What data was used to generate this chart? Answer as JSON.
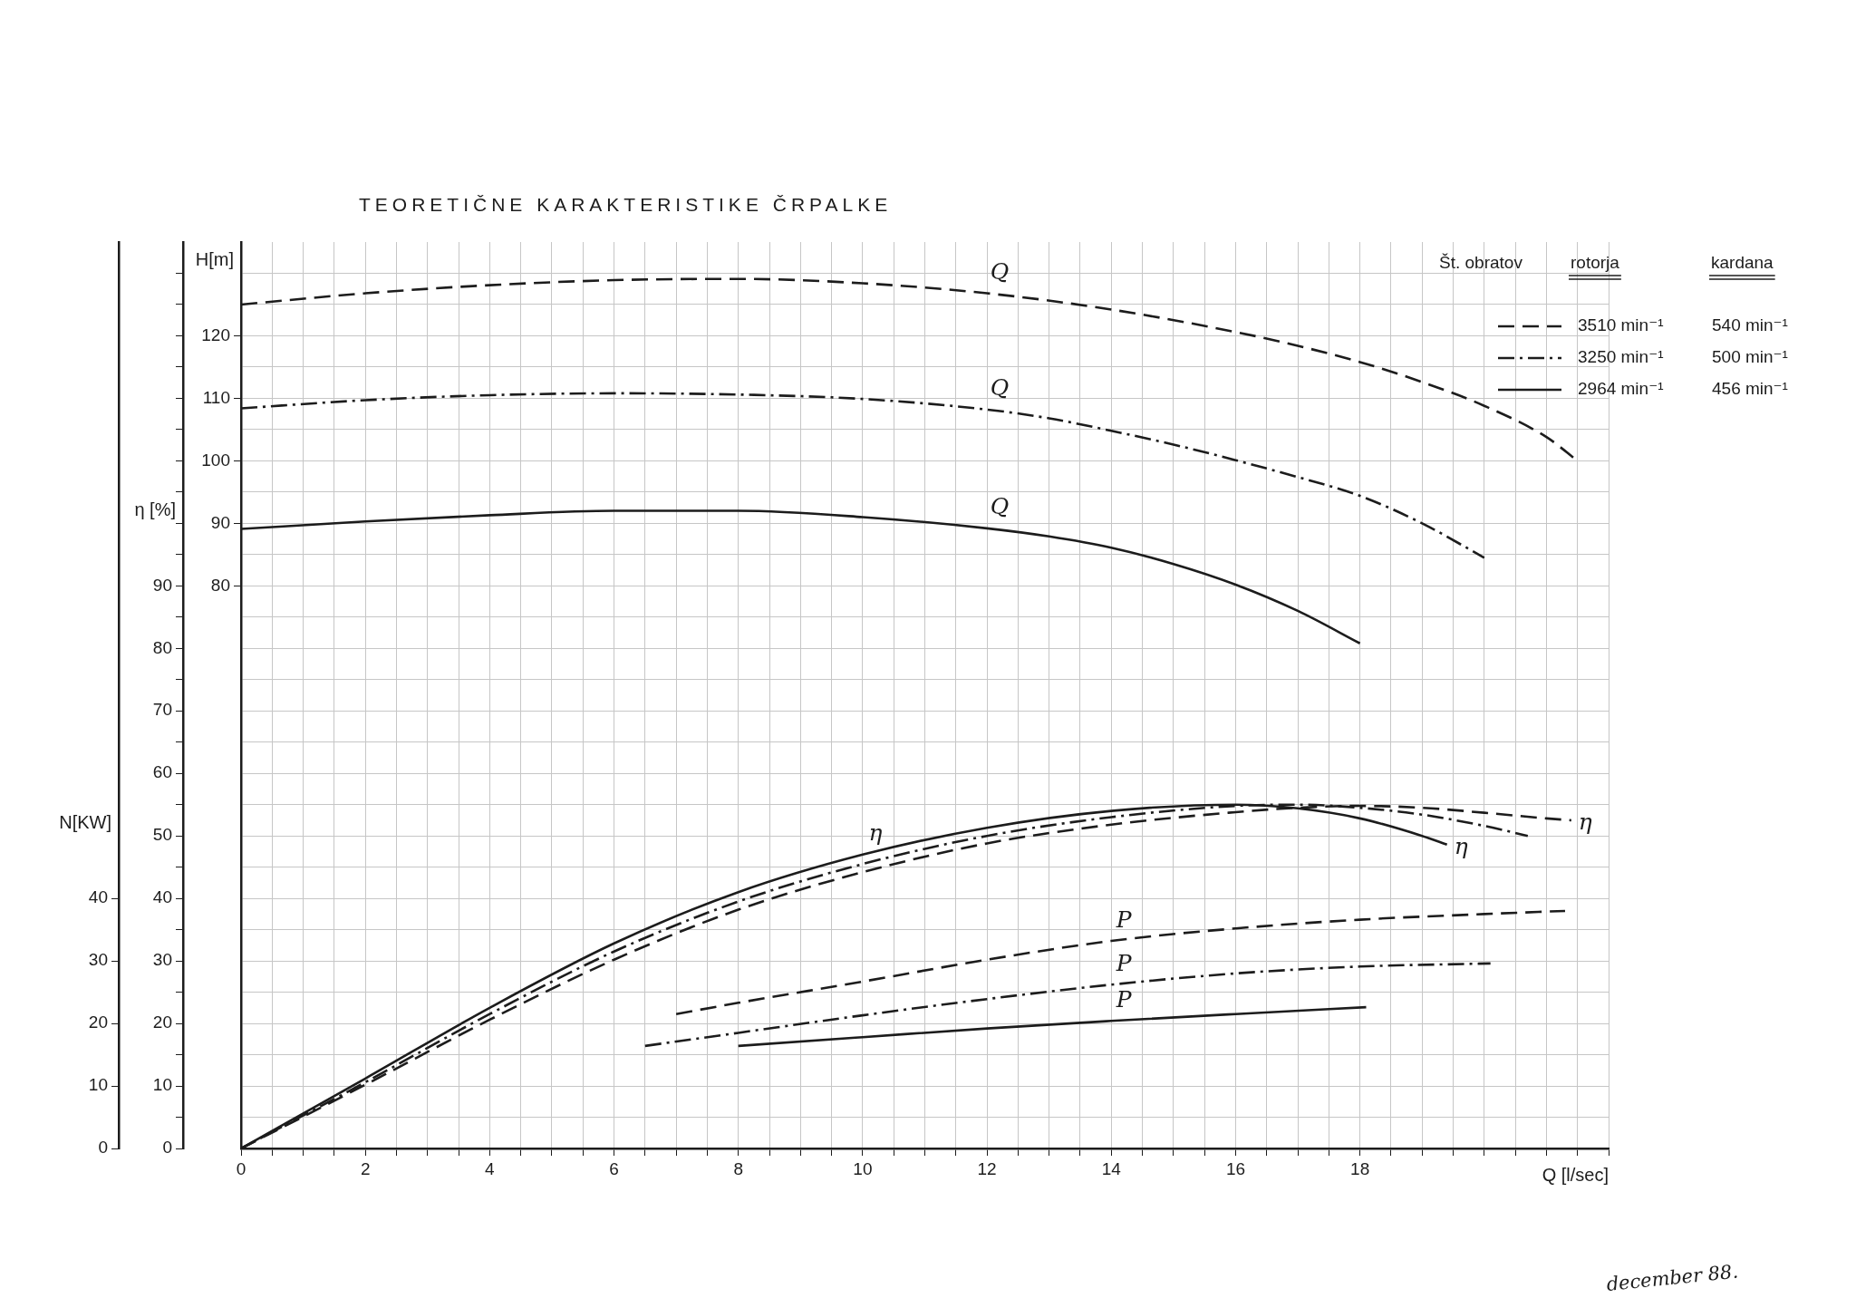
{
  "chart_data": {
    "type": "line",
    "title": "TEORETIČNE KARAKTERISTIKE ČRPALKE",
    "xlabel": "Q [l/sec]",
    "ylabel": "η [%]",
    "y2label": "H[m]",
    "y3label": "N[KW]",
    "legend_title": "Št. obratov",
    "legend": "top right",
    "grid": true,
    "marker": "none",
    "xlim": [
      0,
      22
    ],
    "xticks": [
      0,
      {
        "value": 0.5,
        "label": null
      },
      {
        "value": 1,
        "label": null
      },
      {
        "value": 1.5,
        "label": null
      },
      2,
      {
        "value": 2.5,
        "label": null
      },
      {
        "value": 3,
        "label": null
      },
      {
        "value": 3.5,
        "label": null
      },
      4,
      {
        "value": 4.5,
        "label": null
      },
      {
        "value": 5,
        "label": null
      },
      {
        "value": 5.5,
        "label": null
      },
      6,
      {
        "value": 6.5,
        "label": null
      },
      {
        "value": 7,
        "label": null
      },
      {
        "value": 7.5,
        "label": null
      },
      8,
      {
        "value": 8.5,
        "label": null
      },
      {
        "value": 9,
        "label": null
      },
      {
        "value": 9.5,
        "label": null
      },
      10,
      {
        "value": 10.5,
        "label": null
      },
      {
        "value": 11,
        "label": null
      },
      {
        "value": 11.5,
        "label": null
      },
      12,
      {
        "value": 12.5,
        "label": null
      },
      {
        "value": 13,
        "label": null
      },
      {
        "value": 13.5,
        "label": null
      },
      14,
      {
        "value": 14.5,
        "label": null
      },
      {
        "value": 15,
        "label": null
      },
      {
        "value": 15.5,
        "label": null
      },
      16,
      {
        "value": 16.5,
        "label": null
      },
      {
        "value": 17,
        "label": null
      },
      {
        "value": 17.5,
        "label": null
      },
      18,
      {
        "value": 18.5,
        "label": null
      },
      {
        "value": 19,
        "label": null
      },
      {
        "value": 19.5,
        "label": null
      },
      {
        "value": 20,
        "label": null
      },
      {
        "value": 20.5,
        "label": null
      },
      {
        "value": 21,
        "label": null
      },
      {
        "value": 21.5,
        "label": null
      },
      {
        "value": 22,
        "label": null
      }
    ],
    "ylim": [
      0,
      145
    ],
    "yticks": [
      0,
      {
        "value": 5,
        "label": null
      },
      10,
      {
        "value": 15,
        "label": null
      },
      20,
      {
        "value": 25,
        "label": null
      },
      30,
      {
        "value": 35,
        "label": null
      },
      40,
      {
        "value": 45,
        "label": null
      },
      50,
      {
        "value": 55,
        "label": null
      },
      60,
      {
        "value": 65,
        "label": null
      },
      70,
      {
        "value": 75,
        "label": null
      },
      80,
      {
        "value": 85,
        "label": null
      },
      90,
      {
        "value": 95,
        "label": null
      },
      {
        "value": 100,
        "label": null
      },
      {
        "value": 105,
        "label": null
      },
      {
        "value": 110,
        "label": null
      },
      {
        "value": 115,
        "label": null
      },
      {
        "value": 120,
        "label": null
      },
      {
        "value": 125,
        "label": null
      },
      {
        "value": 130,
        "label": null
      },
      {
        "value": 135,
        "label": null
      },
      {
        "value": 140,
        "label": null
      }
    ],
    "y2lim": [
      -10,
      135
    ],
    "y2ticks": [
      80,
      90,
      100,
      110,
      120
    ],
    "y3lim": [
      0,
      145
    ],
    "y3ticks": [
      0,
      10,
      20,
      30,
      40
    ],
    "series": [
      {
        "name": "3510 min⁻¹",
        "color": "#1c1c1c",
        "line_style": "dashed",
        "axis": "y2",
        "x": [
          0,
          2,
          4,
          6,
          8,
          10,
          12,
          14,
          16,
          17,
          18,
          19,
          20,
          21,
          21.5
        ],
        "values": [
          125,
          126.8,
          128.1,
          128.9,
          129.1,
          128.4,
          126.8,
          124.2,
          120.6,
          118.4,
          115.8,
          112.6,
          108.8,
          103.8,
          100
        ]
      },
      {
        "name": "3250 min⁻¹",
        "color": "#1c1c1c",
        "line_style": "dashdot",
        "axis": "y2",
        "x": [
          0,
          2,
          4,
          6,
          8,
          10,
          12,
          13,
          14,
          15,
          16,
          17,
          18,
          19,
          20
        ],
        "values": [
          108.4,
          109.7,
          110.5,
          110.8,
          110.6,
          109.9,
          108.2,
          106.8,
          104.8,
          102.6,
          100.1,
          97.4,
          94.4,
          90,
          84.5
        ]
      },
      {
        "name": "2964 min⁻¹",
        "color": "#1c1c1c",
        "line_style": "solid",
        "axis": "y2",
        "x": [
          0,
          2,
          4,
          6,
          8,
          10,
          12,
          13,
          14,
          15,
          16,
          17,
          18
        ],
        "values": [
          89.1,
          90.3,
          91.3,
          92,
          92,
          91,
          89.2,
          87.9,
          86.1,
          83.5,
          80.2,
          76,
          70.8
        ]
      },
      {
        "color": "#1c1c1c",
        "line_style": "dashed",
        "axis": "y",
        "x": [
          0,
          2,
          4,
          6,
          8,
          10,
          12,
          14,
          16,
          17,
          18,
          19,
          20,
          21,
          21.4
        ],
        "values": [
          0,
          10.2,
          20.6,
          30.2,
          38.2,
          44.2,
          48.8,
          51.8,
          53.8,
          54.5,
          54.8,
          54.5,
          53.7,
          52.8,
          52.5
        ]
      },
      {
        "color": "#1c1c1c",
        "line_style": "dashdot",
        "axis": "y",
        "x": [
          0,
          2,
          4,
          6,
          8,
          10,
          12,
          14,
          16,
          17,
          18,
          19,
          20,
          20.7
        ],
        "values": [
          0,
          10.6,
          21.5,
          31.5,
          39.5,
          45.5,
          50,
          53,
          54.8,
          55,
          54.5,
          53.4,
          51.6,
          50
        ]
      },
      {
        "color": "#1c1c1c",
        "line_style": "solid",
        "axis": "y",
        "x": [
          0,
          2,
          4,
          6,
          8,
          10,
          12,
          14,
          16,
          17,
          18,
          19,
          19.4
        ],
        "values": [
          0,
          11.2,
          22.5,
          32.8,
          41,
          47,
          51.3,
          54,
          55,
          54.4,
          52.8,
          50,
          48.6
        ]
      },
      {
        "color": "#1c1c1c",
        "line_style": "dashed",
        "axis": "y3",
        "x": [
          7,
          8,
          10,
          12,
          14,
          16,
          18,
          20,
          21.3
        ],
        "values": [
          21.5,
          23.3,
          26.7,
          30.2,
          33.2,
          35.2,
          36.6,
          37.5,
          38
        ]
      },
      {
        "color": "#1c1c1c",
        "line_style": "dashdot",
        "axis": "y3",
        "x": [
          6.5,
          8,
          10,
          12,
          14,
          16,
          18,
          20.1
        ],
        "values": [
          16.4,
          18.5,
          21.3,
          23.9,
          26.2,
          28,
          29.1,
          29.6
        ]
      },
      {
        "color": "#1c1c1c",
        "line_style": "solid",
        "axis": "y3",
        "x": [
          8,
          10,
          12,
          14,
          16,
          18.1
        ],
        "values": [
          16.4,
          17.8,
          19.2,
          20.4,
          21.5,
          22.6
        ]
      }
    ],
    "annotations": [
      "rotorja",
      "kardana",
      "540 min⁻¹",
      "500 min⁻¹",
      "456 min⁻¹",
      "december 88.",
      {
        "text": "Q",
        "x": 12,
        "y": 136.8
      },
      {
        "text": "Q",
        "x": 12,
        "y": 118.2
      },
      {
        "text": "Q",
        "x": 12,
        "y": 99.2
      },
      {
        "text": "η",
        "x": 10,
        "y": 47
      },
      {
        "text": "η",
        "x": 19.4,
        "y": 48.6
      },
      {
        "text": "η",
        "x": 21.4,
        "y": 52.5
      },
      {
        "text": "P",
        "x": 14,
        "y": 33.2
      },
      {
        "text": "P",
        "x": 14,
        "y": 26.2
      },
      {
        "text": "P",
        "x": 14,
        "y": 20.4
      }
    ]
  }
}
